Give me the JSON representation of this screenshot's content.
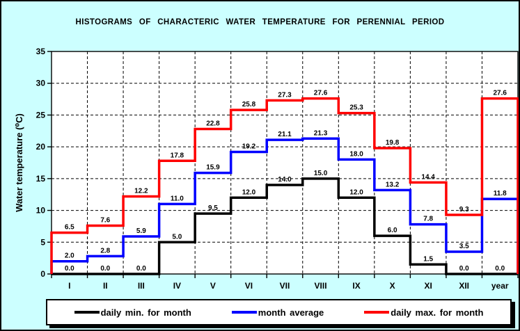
{
  "window": {
    "background": "#CCFFFF",
    "plot_background": "#FFFFFF",
    "border_color": "#000000",
    "grid_style": "dashed"
  },
  "chart_data": {
    "type": "step-line-histogram",
    "title": "HISTOGRAMS OF CHARACTERIC WATER TEMPERATURE FOR PERENNIAL PERIOD",
    "xlabel": "",
    "ylabel": "Water temperature (⁰C)",
    "ylim": [
      0,
      35
    ],
    "ytick_step": 5,
    "grid": true,
    "legend_position": "bottom",
    "categories": [
      "I",
      "II",
      "III",
      "IV",
      "V",
      "VI",
      "VII",
      "VIII",
      "IX",
      "X",
      "XI",
      "XII",
      "year"
    ],
    "series": [
      {
        "name": "daily min. for month",
        "color": "#000000",
        "values": [
          0.0,
          0.0,
          0.0,
          5.0,
          9.5,
          12.0,
          14.0,
          15.0,
          12.0,
          6.0,
          1.5,
          0.0,
          0.0
        ]
      },
      {
        "name": "month average",
        "color": "#0000FF",
        "values": [
          2.0,
          2.8,
          5.9,
          11.0,
          15.9,
          19.2,
          21.1,
          21.3,
          18.0,
          13.2,
          7.8,
          3.5,
          11.8
        ]
      },
      {
        "name": "daily max. for month",
        "color": "#FF0000",
        "values": [
          6.5,
          7.6,
          12.2,
          17.8,
          22.8,
          25.8,
          27.3,
          27.6,
          25.3,
          19.8,
          14.4,
          9.3,
          27.6
        ]
      }
    ]
  }
}
